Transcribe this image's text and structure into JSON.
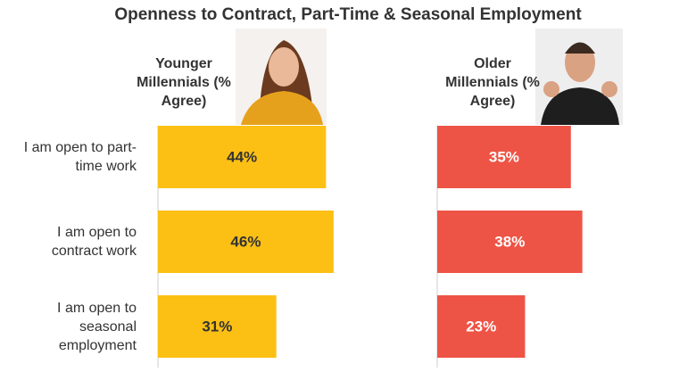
{
  "title": "Openness to Contract, Part-Time & Seasonal Employment",
  "chart_data": {
    "type": "bar",
    "orientation": "horizontal",
    "categories": [
      "I am open to part-time work",
      "I am open to contract work",
      "I am open to seasonal employment"
    ],
    "xlim": [
      0,
      50
    ],
    "series": [
      {
        "name": "Younger Millennials (% Agree)",
        "color": "#fcc015",
        "label_color": "#333333",
        "values": [
          44,
          46,
          31
        ],
        "value_labels": [
          "44%",
          "46%",
          "31%"
        ]
      },
      {
        "name": "Older Millennials (% Agree)",
        "color": "#ee5446",
        "label_color": "#ffffff",
        "values": [
          35,
          38,
          23
        ],
        "value_labels": [
          "35%",
          "38%",
          "23%"
        ]
      }
    ]
  }
}
